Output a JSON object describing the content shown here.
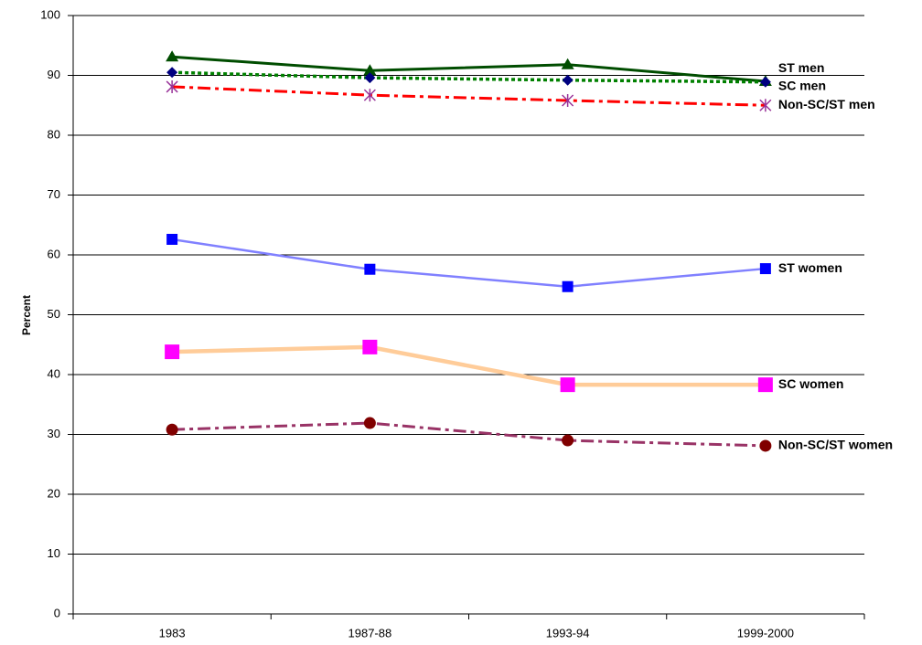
{
  "chart_data": {
    "type": "line",
    "y_label": "Percent",
    "categories": [
      "1983",
      "1987-88",
      "1993-94",
      "1999-2000"
    ],
    "ylim": [
      0,
      100
    ],
    "yticks": [
      0,
      10,
      20,
      30,
      40,
      50,
      60,
      70,
      80,
      90,
      100
    ],
    "grid": true,
    "series": [
      {
        "name": "ST men",
        "color": "#004d00",
        "dash": "solid",
        "width": 3,
        "marker": "triangle",
        "marker_color": "#004d00",
        "values": [
          93.1,
          90.8,
          91.8,
          89.0
        ]
      },
      {
        "name": "SC men",
        "color": "#008000",
        "dash": "dotted",
        "width": 3.5,
        "marker": "diamond",
        "marker_color": "#000080",
        "values": [
          90.5,
          89.6,
          89.2,
          88.9
        ]
      },
      {
        "name": "Non-SC/ST men",
        "color": "#ff0000",
        "dash": "dashdot",
        "width": 3,
        "marker": "asterisk",
        "marker_color": "#993399",
        "values": [
          88.1,
          86.7,
          85.8,
          85.0
        ]
      },
      {
        "name": "ST women",
        "color": "#8080ff",
        "dash": "solid",
        "width": 2.5,
        "marker": "square",
        "marker_color": "#0000ff",
        "values": [
          62.6,
          57.6,
          54.7,
          57.7
        ]
      },
      {
        "name": "SC women",
        "color": "#ffcc99",
        "dash": "solid",
        "width": 4.5,
        "marker": "square-large",
        "marker_color": "#ff00ff",
        "values": [
          43.8,
          44.6,
          38.3,
          38.3
        ]
      },
      {
        "name": "Non-SC/ST women",
        "color": "#993366",
        "dash": "dashdot",
        "width": 3,
        "marker": "circle",
        "marker_color": "#800000",
        "values": [
          30.8,
          31.9,
          29.0,
          28.1
        ]
      }
    ]
  }
}
